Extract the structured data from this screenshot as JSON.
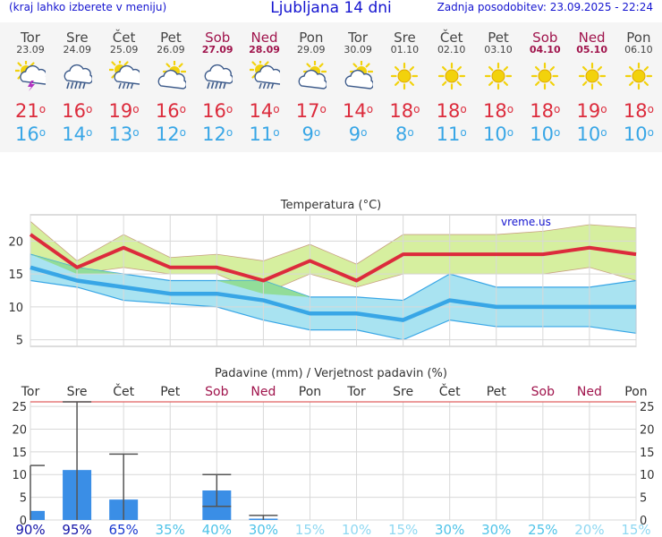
{
  "header": {
    "menu_hint": "(kraj lahko izberete v meniju)",
    "title": "Ljubljana 14 dni",
    "updated": "Zadnja posodobitev: 23.09.2025 - 22:24"
  },
  "days": [
    {
      "name": "Tor",
      "date": "23.09",
      "weekend": false,
      "icon": "sun-cloud-lightning-icon",
      "tmax": "21",
      "tmin": "16"
    },
    {
      "name": "Sre",
      "date": "24.09",
      "weekend": false,
      "icon": "cloud-rain-icon",
      "tmax": "16",
      "tmin": "14"
    },
    {
      "name": "Čet",
      "date": "25.09",
      "weekend": false,
      "icon": "sun-cloud-rain-icon",
      "tmax": "19",
      "tmin": "13"
    },
    {
      "name": "Pet",
      "date": "26.09",
      "weekend": false,
      "icon": "partly-cloudy-icon",
      "tmax": "16",
      "tmin": "12"
    },
    {
      "name": "Sob",
      "date": "27.09",
      "weekend": true,
      "icon": "cloud-rain-icon",
      "tmax": "16",
      "tmin": "12"
    },
    {
      "name": "Ned",
      "date": "28.09",
      "weekend": true,
      "icon": "sun-cloud-rain-icon",
      "tmax": "14",
      "tmin": "11"
    },
    {
      "name": "Pon",
      "date": "29.09",
      "weekend": false,
      "icon": "partly-cloudy-icon",
      "tmax": "17",
      "tmin": "9"
    },
    {
      "name": "Tor",
      "date": "30.09",
      "weekend": false,
      "icon": "partly-cloudy-icon",
      "tmax": "14",
      "tmin": "9"
    },
    {
      "name": "Sre",
      "date": "01.10",
      "weekend": false,
      "icon": "sun-icon",
      "tmax": "18",
      "tmin": "8"
    },
    {
      "name": "Čet",
      "date": "02.10",
      "weekend": false,
      "icon": "sun-icon",
      "tmax": "18",
      "tmin": "11"
    },
    {
      "name": "Pet",
      "date": "03.10",
      "weekend": false,
      "icon": "sun-icon",
      "tmax": "18",
      "tmin": "10"
    },
    {
      "name": "Sob",
      "date": "04.10",
      "weekend": true,
      "icon": "sun-icon",
      "tmax": "18",
      "tmin": "10"
    },
    {
      "name": "Ned",
      "date": "05.10",
      "weekend": true,
      "icon": "sun-icon",
      "tmax": "19",
      "tmin": "10"
    },
    {
      "name": "Pon",
      "date": "06.10",
      "weekend": false,
      "icon": "sun-icon",
      "tmax": "18",
      "tmin": "10"
    }
  ],
  "chart_data": [
    {
      "type": "line",
      "title": "Temperatura (°C)",
      "watermark": "vreme.us",
      "ylim": [
        4,
        24
      ],
      "yticks": [
        "5",
        "10",
        "15",
        "20"
      ],
      "x": [
        "23.09",
        "24.09",
        "25.09",
        "26.09",
        "27.09",
        "28.09",
        "29.09",
        "30.09",
        "01.10",
        "02.10",
        "03.10",
        "04.10",
        "05.10",
        "06.10"
      ],
      "series": [
        {
          "values": [
            21,
            16,
            19,
            16,
            16,
            14,
            17,
            14,
            18,
            18,
            18,
            18,
            19,
            18
          ]
        },
        {
          "values": [
            23,
            17,
            21,
            17.5,
            18,
            17,
            19.5,
            16.5,
            21,
            21,
            21,
            21.5,
            22.5,
            22
          ]
        },
        {
          "values": [
            18,
            15,
            16,
            15,
            15,
            12,
            15,
            13,
            15,
            15,
            15,
            15,
            16,
            14
          ]
        },
        {
          "values": [
            16,
            14,
            13,
            12,
            12,
            11,
            9,
            9,
            8,
            11,
            10,
            10,
            10,
            10
          ]
        },
        {
          "values": [
            18,
            16,
            15,
            14,
            14,
            14,
            11.5,
            11.5,
            11,
            15,
            13,
            13,
            13,
            14
          ]
        },
        {
          "values": [
            14,
            13,
            11,
            10.5,
            10,
            8,
            6.5,
            6.5,
            5,
            8,
            7,
            7,
            7,
            6
          ]
        }
      ],
      "grid": true,
      "colors": {
        "tmax": "#dc2b3c",
        "tmax_band": "#d6ef9f",
        "tmin": "#38a6e6",
        "tmin_band": "#a9e3f1",
        "overlap": "#8fdb8f"
      }
    },
    {
      "type": "bar",
      "title": "Padavine (mm) / Verjetnost padavin (%)",
      "ylim": [
        0,
        26
      ],
      "yticks": [
        "0",
        "5",
        "10",
        "15",
        "20",
        "25"
      ],
      "categories": [
        "Tor",
        "Sre",
        "Čet",
        "Pet",
        "Sob",
        "Ned",
        "Pon",
        "Tor",
        "Sre",
        "Čet",
        "Pet",
        "Sob",
        "Ned",
        "Pon"
      ],
      "weekend": [
        false,
        false,
        false,
        false,
        true,
        true,
        false,
        false,
        false,
        false,
        false,
        true,
        true,
        false
      ],
      "series": [
        {
          "values": [
            2,
            11,
            4.5,
            0,
            6.5,
            0.3,
            0,
            0,
            0,
            0,
            0,
            0,
            0,
            0
          ]
        },
        {
          "values": [
            0,
            0,
            0,
            0,
            3,
            0,
            0,
            0,
            0,
            0,
            0,
            0,
            0,
            0
          ]
        },
        {
          "values": [
            12,
            26,
            14.5,
            0,
            10,
            1,
            0,
            0,
            0,
            0,
            0,
            0,
            0,
            0
          ]
        }
      ],
      "probabilities": [
        "90%",
        "95%",
        "65%",
        "35%",
        "40%",
        "30%",
        "15%",
        "10%",
        "15%",
        "30%",
        "30%",
        "25%",
        "20%",
        "15%"
      ],
      "prob_colors": [
        "#1515a8",
        "#1515a8",
        "#1a3ad0",
        "#4fc3e8",
        "#4fc3e8",
        "#4fc3e8",
        "#8fd8f2",
        "#8fd8f2",
        "#8fd8f2",
        "#4fc3e8",
        "#4fc3e8",
        "#4fc3e8",
        "#8fd8f2",
        "#8fd8f2"
      ],
      "colors": {
        "bar": "#3a8ee6",
        "whisker": "#555555",
        "weekend": "#a0144c",
        "top_line": "#e06060"
      }
    }
  ]
}
